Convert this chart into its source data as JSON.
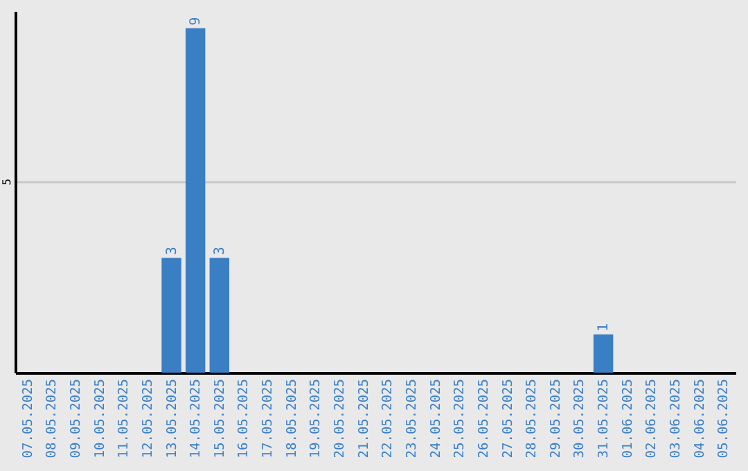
{
  "chart_data": {
    "type": "bar",
    "categories": [
      "07.05.2025",
      "08.05.2025",
      "09.05.2025",
      "10.05.2025",
      "11.05.2025",
      "12.05.2025",
      "13.05.2025",
      "14.05.2025",
      "15.05.2025",
      "16.05.2025",
      "17.05.2025",
      "18.05.2025",
      "19.05.2025",
      "20.05.2025",
      "21.05.2025",
      "22.05.2025",
      "23.05.2025",
      "24.05.2025",
      "25.05.2025",
      "26.05.2025",
      "27.05.2025",
      "28.05.2025",
      "29.05.2025",
      "30.05.2025",
      "31.05.2025",
      "01.06.2025",
      "02.06.2025",
      "03.06.2025",
      "04.06.2025",
      "05.06.2025"
    ],
    "values": [
      0,
      0,
      0,
      0,
      0,
      0,
      3,
      9,
      3,
      0,
      0,
      0,
      0,
      0,
      0,
      0,
      0,
      0,
      0,
      0,
      0,
      0,
      0,
      0,
      1,
      0,
      0,
      0,
      0,
      0
    ],
    "value_labels": [
      null,
      null,
      null,
      null,
      null,
      null,
      "3",
      "9",
      "3",
      null,
      null,
      null,
      null,
      null,
      null,
      null,
      null,
      null,
      null,
      null,
      null,
      null,
      null,
      null,
      "1",
      null,
      null,
      null,
      null,
      null
    ],
    "color": "#3a7ec4",
    "ylim": [
      0,
      9.45
    ],
    "yticks": [
      5
    ],
    "grid": "y"
  }
}
